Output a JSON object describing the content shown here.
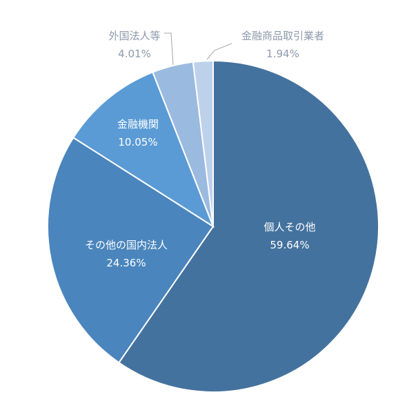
{
  "chart_data": {
    "type": "pie",
    "start_angle_deg": 0,
    "direction": "clockwise",
    "slices": [
      {
        "label": "個人その他",
        "value": 59.64,
        "value_label": "59.64%",
        "color": "#44729e",
        "label_placement": "inside"
      },
      {
        "label": "その他の国内法人",
        "value": 24.36,
        "value_label": "24.36%",
        "color": "#4a85bd",
        "label_placement": "inside"
      },
      {
        "label": "金融機関",
        "value": 10.05,
        "value_label": "10.05%",
        "color": "#5b9bd5",
        "label_placement": "inside"
      },
      {
        "label": "外国法人等",
        "value": 4.01,
        "value_label": "4.01%",
        "color": "#9bbadf",
        "label_placement": "outside"
      },
      {
        "label": "金融商品取引業者",
        "value": 1.94,
        "value_label": "1.94%",
        "color": "#bdd1ea",
        "label_placement": "outside"
      }
    ]
  }
}
